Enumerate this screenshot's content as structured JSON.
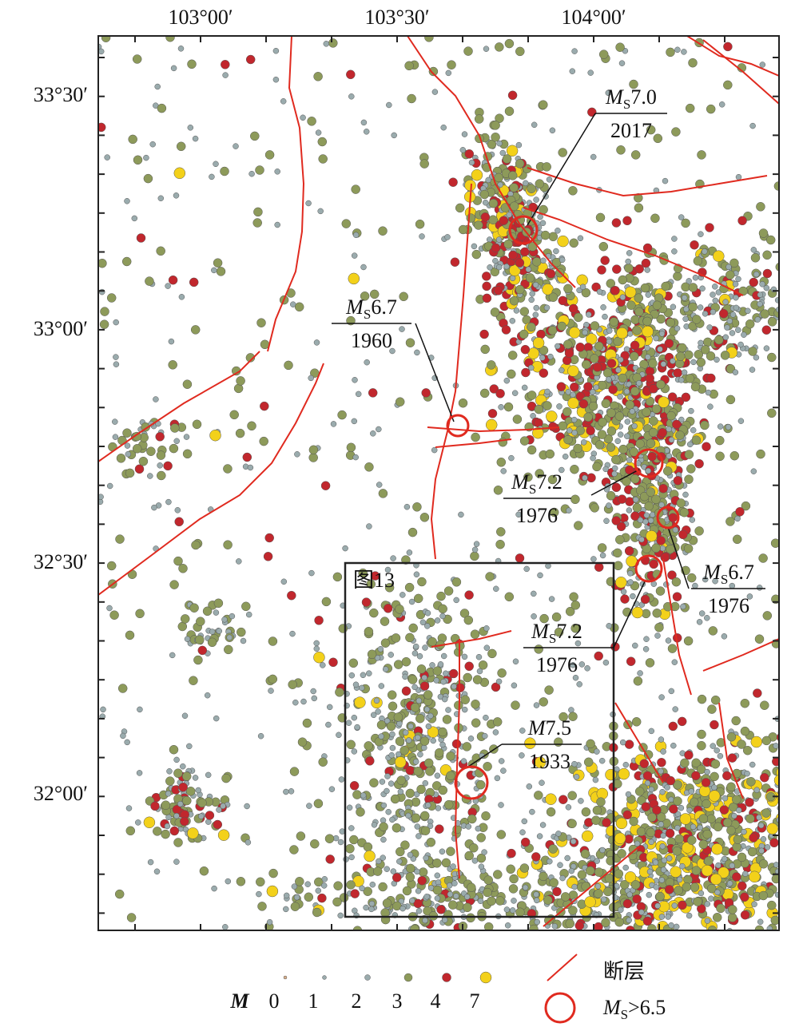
{
  "map": {
    "lon_labels": [
      "103°00′",
      "103°30′",
      "104°00′"
    ],
    "lat_labels": [
      "33°30′",
      "33°00′",
      "32°30′",
      "32°00′"
    ],
    "inset_label": "图13",
    "annotations": [
      {
        "symbol": "M",
        "sub": "S",
        "value": "7.0",
        "year": "2017"
      },
      {
        "symbol": "M",
        "sub": "S",
        "value": "6.7",
        "year": "1960"
      },
      {
        "symbol": "M",
        "sub": "S",
        "value": "7.2",
        "year": "1976"
      },
      {
        "symbol": "M",
        "sub": "S",
        "value": "6.7",
        "year": "1976"
      },
      {
        "symbol": "M",
        "sub": "S",
        "value": "7.2",
        "year": "1976"
      },
      {
        "symbol": "M",
        "sub": "",
        "value": "7.5",
        "year": "1933"
      }
    ]
  },
  "legend": {
    "magnitude_title": "M",
    "magnitudes": [
      "0",
      "1",
      "2",
      "3",
      "4",
      "7"
    ],
    "fault_label": "断层",
    "circle_label": {
      "symbol": "M",
      "sub": "S",
      "text": ">6.5"
    }
  }
}
